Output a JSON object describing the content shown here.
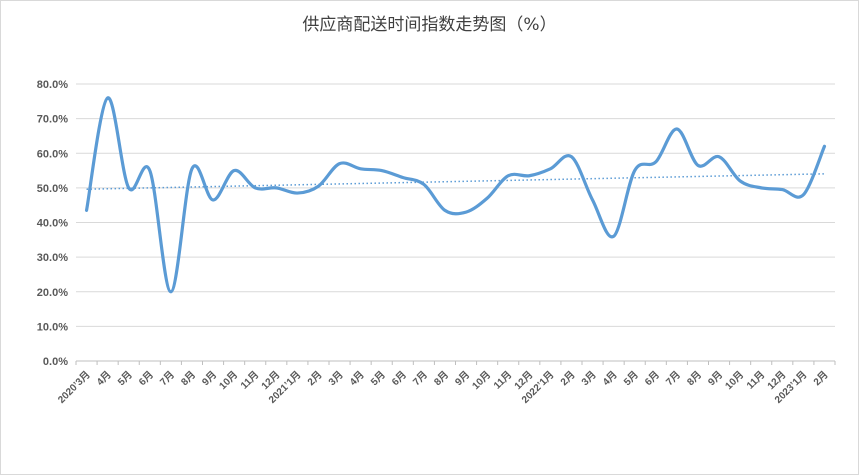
{
  "chart_data": {
    "type": "line",
    "title": "供应商配送时间指数走势图（%）",
    "xlabel": "",
    "ylabel": "",
    "ylim": [
      0,
      80
    ],
    "yticks": [
      "0.0%",
      "10.0%",
      "20.0%",
      "30.0%",
      "40.0%",
      "50.0%",
      "60.0%",
      "70.0%",
      "80.0%"
    ],
    "grid": true,
    "trendline": "linear",
    "categories": [
      "2020’3月",
      "4月",
      "5月",
      "6月",
      "7月",
      "8月",
      "9月",
      "10月",
      "11月",
      "12月",
      "2021’1月",
      "2月",
      "3月",
      "4月",
      "5月",
      "6月",
      "7月",
      "8月",
      "9月",
      "10月",
      "11月",
      "12月",
      "2022’1月",
      "2月",
      "3月",
      "4月",
      "5月",
      "6月",
      "7月",
      "8月",
      "9月",
      "10月",
      "11月",
      "12月",
      "2023’1月",
      "2月"
    ],
    "series": [
      {
        "values": [
          43.5,
          76.0,
          50.0,
          55.0,
          20.0,
          55.5,
          46.5,
          55.0,
          50.0,
          50.0,
          48.5,
          50.5,
          57.0,
          55.5,
          55.0,
          53.0,
          51.0,
          43.5,
          43.0,
          47.0,
          53.5,
          53.5,
          55.5,
          59.0,
          46.5,
          36.0,
          55.0,
          57.5,
          67.0,
          56.5,
          59.0,
          52.0,
          50.0,
          49.5,
          48.0,
          62.0
        ],
        "color": "#5b9bd5"
      }
    ]
  }
}
